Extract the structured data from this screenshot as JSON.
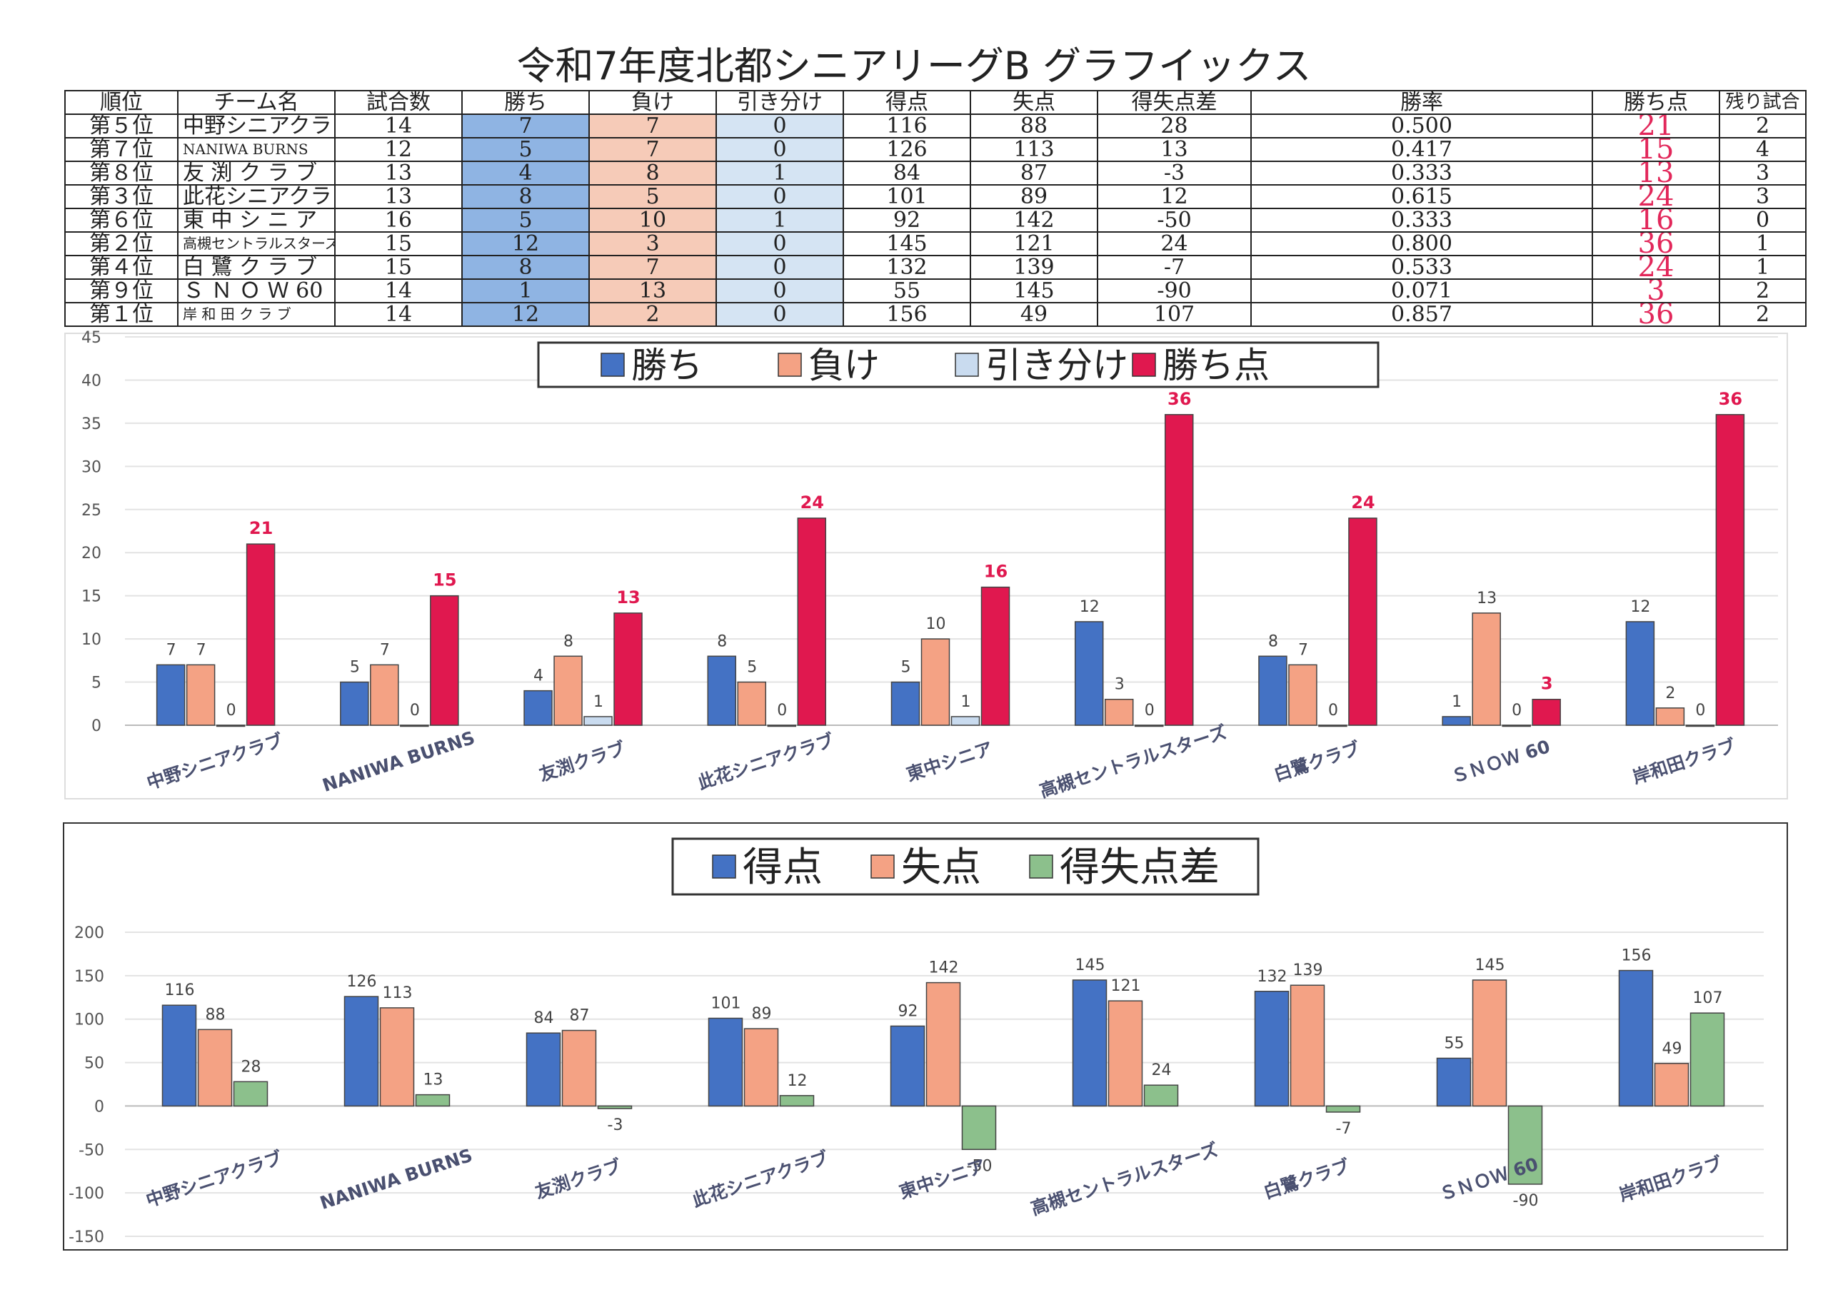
{
  "page_title": "令和7年度北都シニアリーグB グラフイックス",
  "table": {
    "headers": [
      "順位",
      "チーム名",
      "試合数",
      "勝ち",
      "負け",
      "引き分け",
      "得点",
      "失点",
      "得失点差",
      "勝率",
      "勝ち点",
      "残り試合"
    ],
    "rows": [
      {
        "rank": "第５位",
        "team": "中野シニアクラブ",
        "games": "14",
        "win": "7",
        "lose": "7",
        "draw": "0",
        "runs_for": "116",
        "runs_against": "88",
        "diff": "28",
        "pct": "0.500",
        "points": "21",
        "remaining": "2"
      },
      {
        "rank": "第７位",
        "team": "NANIWA BURNS",
        "games": "12",
        "win": "5",
        "lose": "7",
        "draw": "0",
        "runs_for": "126",
        "runs_against": "113",
        "diff": "13",
        "pct": "0.417",
        "points": "15",
        "remaining": "4"
      },
      {
        "rank": "第８位",
        "team": "友 渕 ク ラ ブ",
        "games": "13",
        "win": "4",
        "lose": "8",
        "draw": "1",
        "runs_for": "84",
        "runs_against": "87",
        "diff": "-3",
        "pct": "0.333",
        "points": "13",
        "remaining": "3"
      },
      {
        "rank": "第３位",
        "team": "此花シニアクラブ",
        "games": "13",
        "win": "8",
        "lose": "5",
        "draw": "0",
        "runs_for": "101",
        "runs_against": "89",
        "diff": "12",
        "pct": "0.615",
        "points": "24",
        "remaining": "3"
      },
      {
        "rank": "第６位",
        "team": "東 中 シ ニ ア",
        "games": "16",
        "win": "5",
        "lose": "10",
        "draw": "1",
        "runs_for": "92",
        "runs_against": "142",
        "diff": "-50",
        "pct": "0.333",
        "points": "16",
        "remaining": "0"
      },
      {
        "rank": "第２位",
        "team": "高槻セントラルスターズ",
        "games": "15",
        "win": "12",
        "lose": "3",
        "draw": "0",
        "runs_for": "145",
        "runs_against": "121",
        "diff": "24",
        "pct": "0.800",
        "points": "36",
        "remaining": "1"
      },
      {
        "rank": "第４位",
        "team": "白 鷺 ク ラ ブ",
        "games": "15",
        "win": "8",
        "lose": "7",
        "draw": "0",
        "runs_for": "132",
        "runs_against": "139",
        "diff": "-7",
        "pct": "0.533",
        "points": "24",
        "remaining": "1"
      },
      {
        "rank": "第９位",
        "team": "Ｓ Ｎ Ｏ Ｗ 60",
        "games": "14",
        "win": "1",
        "lose": "13",
        "draw": "0",
        "runs_for": "55",
        "runs_against": "145",
        "diff": "-90",
        "pct": "0.071",
        "points": "3",
        "remaining": "2"
      },
      {
        "rank": "第１位",
        "team": "岸 和 田 ク ラ ブ",
        "games": "14",
        "win": "12",
        "lose": "2",
        "draw": "0",
        "runs_for": "156",
        "runs_against": "49",
        "diff": "107",
        "pct": "0.857",
        "points": "36",
        "remaining": "2"
      }
    ]
  },
  "chart_data": [
    {
      "type": "bar",
      "categories": [
        "中野シニアクラブ",
        "NANIWA BURNS",
        "友渕クラブ",
        "此花シニアクラブ",
        "東中シニア",
        "高槻セントラルスターズ",
        "白鷺クラブ",
        "ＳＮＯＷ 60",
        "岸和田クラブ"
      ],
      "series": [
        {
          "name": "勝ち",
          "values": [
            7,
            5,
            4,
            8,
            5,
            12,
            8,
            1,
            12
          ],
          "color": "#4472c4"
        },
        {
          "name": "負け",
          "values": [
            7,
            7,
            8,
            5,
            10,
            3,
            7,
            13,
            2
          ],
          "color": "#f4a284"
        },
        {
          "name": "引き分け",
          "values": [
            0,
            0,
            1,
            0,
            1,
            0,
            0,
            0,
            0
          ],
          "color": "#c9dbef"
        },
        {
          "name": "勝ち点",
          "values": [
            21,
            15,
            13,
            24,
            16,
            36,
            24,
            3,
            36
          ],
          "color": "#e0184f"
        }
      ],
      "ylim": [
        0,
        45
      ],
      "yticks": [
        0,
        5,
        10,
        15,
        20,
        25,
        30,
        35,
        40,
        45
      ],
      "grid": true,
      "legend": "top"
    },
    {
      "type": "bar",
      "categories": [
        "中野シニアクラブ",
        "NANIWA BURNS",
        "友渕クラブ",
        "此花シニアクラブ",
        "東中シニア",
        "高槻セントラルスターズ",
        "白鷺クラブ",
        "ＳＮＯＷ 60",
        "岸和田クラブ"
      ],
      "series": [
        {
          "name": "得点",
          "values": [
            116,
            126,
            84,
            101,
            92,
            145,
            132,
            55,
            156
          ],
          "color": "#4472c4"
        },
        {
          "name": "失点",
          "values": [
            88,
            113,
            87,
            89,
            142,
            121,
            139,
            145,
            49
          ],
          "color": "#f4a284"
        },
        {
          "name": "得失点差",
          "values": [
            28,
            13,
            -3,
            12,
            -50,
            24,
            -7,
            -90,
            107
          ],
          "color": "#8cc08c"
        }
      ],
      "ylim": [
        -150,
        200
      ],
      "yticks": [
        -150,
        -100,
        -50,
        0,
        50,
        100,
        150,
        200
      ],
      "grid": true,
      "legend": "top"
    }
  ]
}
